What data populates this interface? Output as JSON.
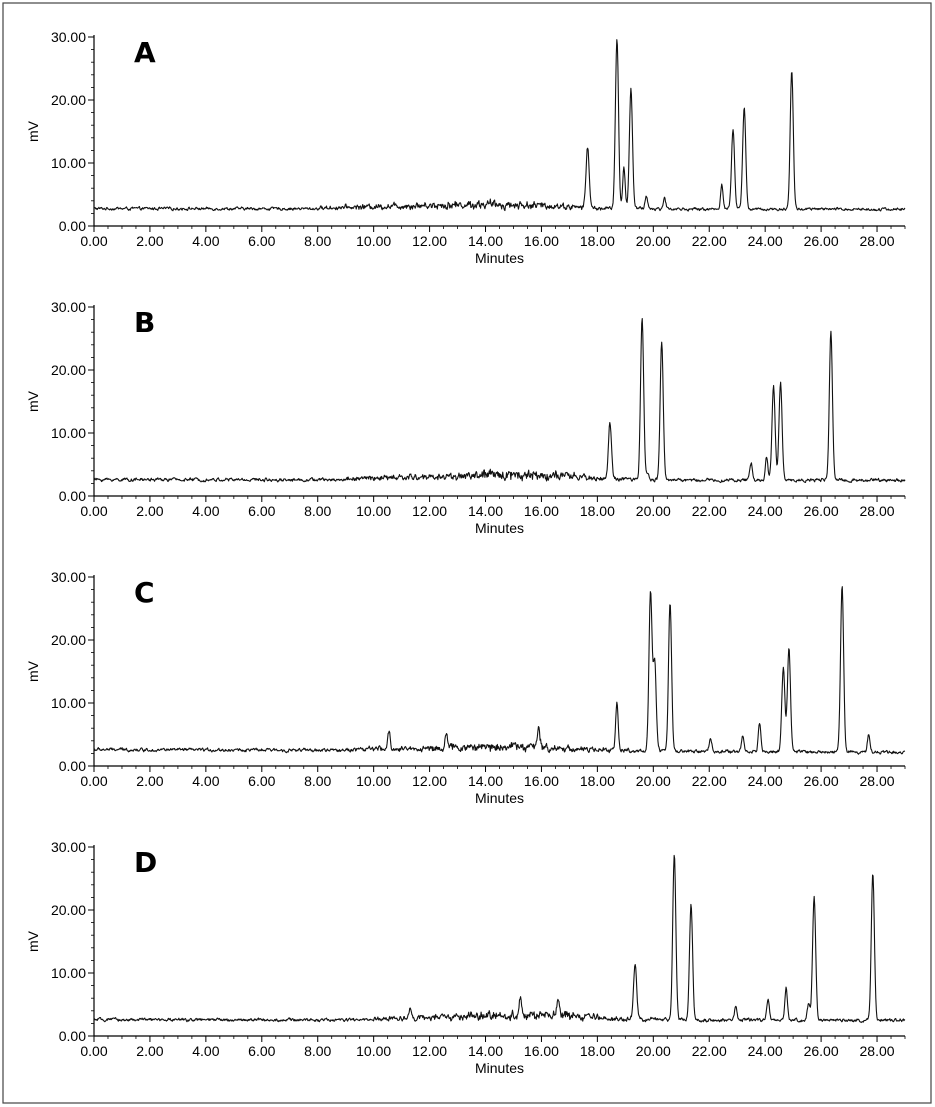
{
  "chart_data": [
    {
      "type": "line",
      "panel_label": "A",
      "xlabel": "Minutes",
      "ylabel": "mV",
      "xlim": [
        0,
        29
      ],
      "ylim": [
        0,
        30
      ],
      "x_ticks": [
        "0.00",
        "2.00",
        "4.00",
        "6.00",
        "8.00",
        "10.00",
        "12.00",
        "14.00",
        "16.00",
        "18.00",
        "20.00",
        "22.00",
        "24.00",
        "26.00",
        "28.00"
      ],
      "y_ticks": [
        "0.00",
        "10.00",
        "20.00",
        "30.00"
      ],
      "baseline_start": 2.7,
      "baseline_end": 2.6,
      "noise_rise": [
        [
          8,
          0.3
        ],
        [
          11,
          1.0
        ],
        [
          14,
          1.4
        ],
        [
          16.5,
          1.0
        ],
        [
          18,
          0.3
        ],
        [
          21,
          0.1
        ]
      ],
      "peaks": [
        [
          1.6,
          0.8
        ],
        [
          7.8,
          1.3
        ],
        [
          11.2,
          1.5
        ],
        [
          14.4,
          1.6
        ],
        [
          17.1,
          2.2
        ],
        [
          17.65,
          12.4
        ],
        [
          18.7,
          29.6
        ],
        [
          18.95,
          9.0
        ],
        [
          19.2,
          21.8
        ],
        [
          19.75,
          4.7
        ],
        [
          20.4,
          4.4
        ],
        [
          22.45,
          6.5
        ],
        [
          22.85,
          15.2
        ],
        [
          23.25,
          18.8
        ],
        [
          24.95,
          24.5
        ]
      ],
      "grid": false,
      "legend": "none"
    },
    {
      "type": "line",
      "panel_label": "B",
      "xlabel": "Minutes",
      "ylabel": "mV",
      "xlim": [
        0,
        29
      ],
      "ylim": [
        0,
        30
      ],
      "x_ticks": [
        "0.00",
        "2.00",
        "4.00",
        "6.00",
        "8.00",
        "10.00",
        "12.00",
        "14.00",
        "16.00",
        "18.00",
        "20.00",
        "22.00",
        "24.00",
        "26.00",
        "28.00"
      ],
      "y_ticks": [
        "0.00",
        "10.00",
        "20.00",
        "30.00"
      ],
      "baseline_start": 2.5,
      "baseline_end": 2.4,
      "noise_rise": [
        [
          9,
          0.5
        ],
        [
          12,
          1.0
        ],
        [
          15,
          1.8
        ],
        [
          17,
          1.2
        ],
        [
          18.5,
          0.4
        ],
        [
          21,
          0.2
        ]
      ],
      "peaks": [
        [
          15.7,
          2.1
        ],
        [
          16.8,
          1.7
        ],
        [
          18.45,
          11.4
        ],
        [
          19.6,
          27.9
        ],
        [
          19.8,
          3.5
        ],
        [
          20.3,
          24.3
        ],
        [
          23.5,
          5.2
        ],
        [
          24.05,
          6.0
        ],
        [
          24.3,
          17.4
        ],
        [
          24.55,
          17.9
        ],
        [
          26.35,
          25.9
        ]
      ],
      "grid": false,
      "legend": "none"
    },
    {
      "type": "line",
      "panel_label": "C",
      "xlabel": "Minutes",
      "ylabel": "mV",
      "xlim": [
        0,
        29
      ],
      "ylim": [
        0,
        30
      ],
      "x_ticks": [
        "0.00",
        "2.00",
        "4.00",
        "6.00",
        "8.00",
        "10.00",
        "12.00",
        "14.00",
        "16.00",
        "18.00",
        "20.00",
        "22.00",
        "24.00",
        "26.00",
        "28.00"
      ],
      "y_ticks": [
        "0.00",
        "10.00",
        "20.00",
        "30.00"
      ],
      "baseline_start": 2.5,
      "baseline_end": 2.1,
      "noise_rise": [
        [
          9,
          0.5
        ],
        [
          12,
          0.8
        ],
        [
          15,
          1.6
        ],
        [
          16,
          1.3
        ],
        [
          18,
          0.5
        ],
        [
          21,
          0.2
        ]
      ],
      "peaks": [
        [
          10.55,
          4.9
        ],
        [
          12.6,
          4.6
        ],
        [
          15.9,
          4.9
        ],
        [
          18.7,
          10.1
        ],
        [
          19.9,
          27.2
        ],
        [
          20.05,
          16.0
        ],
        [
          20.6,
          25.8
        ],
        [
          22.05,
          4.3
        ],
        [
          23.2,
          4.6
        ],
        [
          23.8,
          6.7
        ],
        [
          24.65,
          15.5
        ],
        [
          24.85,
          18.5
        ],
        [
          26.75,
          28.6
        ],
        [
          27.7,
          4.8
        ]
      ],
      "grid": false,
      "legend": "none"
    },
    {
      "type": "line",
      "panel_label": "D",
      "xlabel": "Minutes",
      "ylabel": "mV",
      "xlim": [
        0,
        29
      ],
      "ylim": [
        0,
        30
      ],
      "x_ticks": [
        "0.00",
        "2.00",
        "4.00",
        "6.00",
        "8.00",
        "10.00",
        "12.00",
        "14.00",
        "16.00",
        "18.00",
        "20.00",
        "22.00",
        "24.00",
        "26.00",
        "28.00"
      ],
      "y_ticks": [
        "0.00",
        "10.00",
        "20.00",
        "30.00"
      ],
      "baseline_start": 2.5,
      "baseline_end": 2.4,
      "noise_rise": [
        [
          10,
          0.4
        ],
        [
          12,
          0.8
        ],
        [
          15,
          1.5
        ],
        [
          17,
          1.3
        ],
        [
          19,
          0.4
        ],
        [
          22,
          0.2
        ]
      ],
      "peaks": [
        [
          11.3,
          4.3
        ],
        [
          15.25,
          5.4
        ],
        [
          16.6,
          5.5
        ],
        [
          19.35,
          11.0
        ],
        [
          20.75,
          28.8
        ],
        [
          21.35,
          20.6
        ],
        [
          22.95,
          4.6
        ],
        [
          24.1,
          5.6
        ],
        [
          24.75,
          7.4
        ],
        [
          25.55,
          5.0
        ],
        [
          25.75,
          21.9
        ],
        [
          27.85,
          25.5
        ]
      ],
      "grid": false,
      "legend": "none"
    }
  ]
}
